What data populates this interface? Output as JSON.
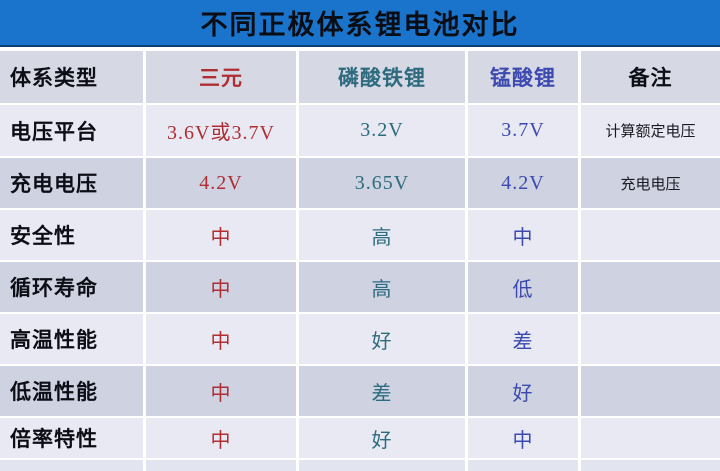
{
  "title_banner": {
    "text": "不同正极体系锂电池对比",
    "background": "#1a74cb",
    "text_color": "#0a0d13"
  },
  "colors": {
    "column_red": "#b02e33",
    "column_teal": "#2e6b7e",
    "column_blue": "#3c4ab0",
    "label_black": "#0d0d15",
    "row_light": "#e8e9f2",
    "row_dark": "#ced2e1",
    "header_row_bg": "#d6d8e4",
    "separator_white": "#ffffff"
  },
  "chart_data": {
    "type": "table",
    "title": "不同正极体系锂电池对比",
    "columns": [
      "体系类型",
      "三元",
      "磷酸铁锂",
      "锰酸锂",
      "备注"
    ],
    "column_text_colors": [
      "#0d0d15",
      "#b02e33",
      "#2e6b7e",
      "#3c4ab0",
      "#0d0d15"
    ],
    "rows": [
      [
        "电压平台",
        "3.6V或3.7V",
        "3.2V",
        "3.7V",
        "计算额定电压"
      ],
      [
        "充电电压",
        "4.2V",
        "3.65V",
        "4.2V",
        "充电电压"
      ],
      [
        "安全性",
        "中",
        "高",
        "中",
        ""
      ],
      [
        "循环寿命",
        "中",
        "高",
        "低",
        ""
      ],
      [
        "高温性能",
        "中",
        "好",
        "差",
        ""
      ],
      [
        "低温性能",
        "中",
        "差",
        "好",
        ""
      ],
      [
        "倍率特性",
        "中",
        "好",
        "中",
        ""
      ]
    ],
    "layout_hints": {
      "zebra_striping": true,
      "first_row_shade": "light",
      "cell_separators": "white lines",
      "values_centered": true,
      "row_labels_left_aligned": true
    }
  }
}
